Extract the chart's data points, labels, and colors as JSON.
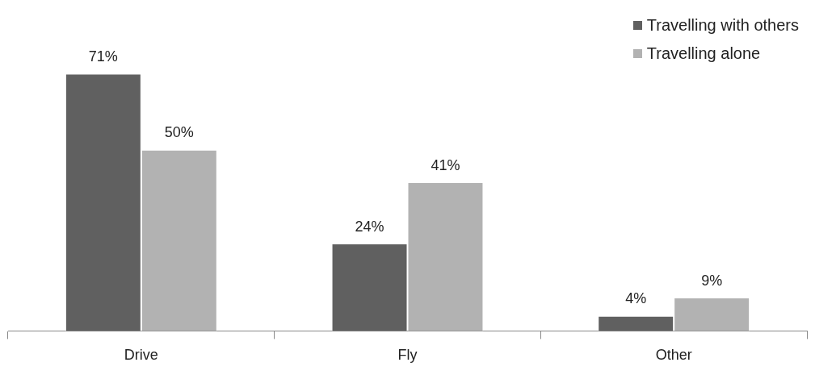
{
  "chart_data": {
    "type": "bar",
    "categories": [
      "Drive",
      "Fly",
      "Other"
    ],
    "series": [
      {
        "name": "Travelling with others",
        "color": "#606060",
        "values": [
          71,
          24,
          4
        ],
        "value_labels": [
          "71%",
          "24%",
          "4%"
        ]
      },
      {
        "name": "Travelling alone",
        "color": "#b2b2b2",
        "values": [
          50,
          41,
          9
        ],
        "value_labels": [
          "50%",
          "41%",
          "9%"
        ]
      }
    ],
    "legend": "top right",
    "tick_labels": "x"
  }
}
